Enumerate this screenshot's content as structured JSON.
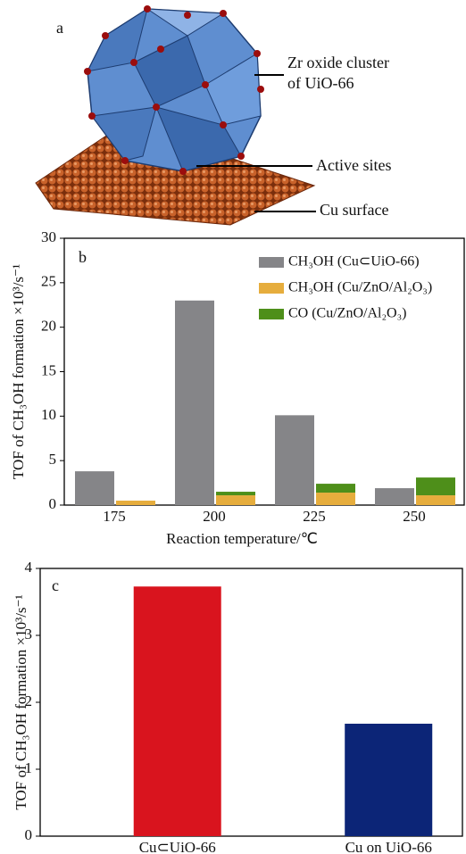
{
  "diagram": {
    "panel_label": "a",
    "zr_cluster": [
      "Zr oxide cluster",
      "of UiO-66"
    ],
    "active_sites": "Active sites",
    "cu_surface": "Cu surface"
  },
  "chart_data": [
    {
      "type": "bar",
      "panel_label": "b",
      "categories": [
        "175",
        "200",
        "225",
        "250"
      ],
      "series": [
        {
          "name": "CH₃OH (Cu⊂UiO-66)",
          "color": "#858588",
          "values": [
            3.8,
            23,
            10.1,
            1.9
          ]
        },
        {
          "name": "CH₃OH (Cu/ZnO/Al₂O₃)",
          "color": "#e6ad3d",
          "values": [
            0.5,
            1.1,
            1.4,
            1.1
          ]
        },
        {
          "name": "CO (Cu/ZnO/Al₂O₃)",
          "color": "#4e8f1a",
          "values": [
            0,
            0.4,
            1.0,
            2.0
          ],
          "stacked": true
        }
      ],
      "xlabel": "Reaction temperature/℃",
      "ylabel": "TOF of CH₃OH formation ×10³/s⁻¹",
      "ylim": [
        0,
        30
      ],
      "yticks": [
        0,
        5,
        10,
        15,
        20,
        25,
        30
      ],
      "legend": "upper right"
    },
    {
      "type": "bar",
      "panel_label": "c",
      "categories": [
        "Cu⊂UiO-66",
        "Cu on UiO-66"
      ],
      "values": [
        3.73,
        1.68
      ],
      "colors": [
        "#d9141e",
        "#0c2577"
      ],
      "ylabel": "TOF of CH₃OH formation ×10³/s⁻¹",
      "ylim": [
        0,
        4
      ],
      "yticks": [
        0,
        1,
        2,
        3,
        4
      ]
    }
  ]
}
